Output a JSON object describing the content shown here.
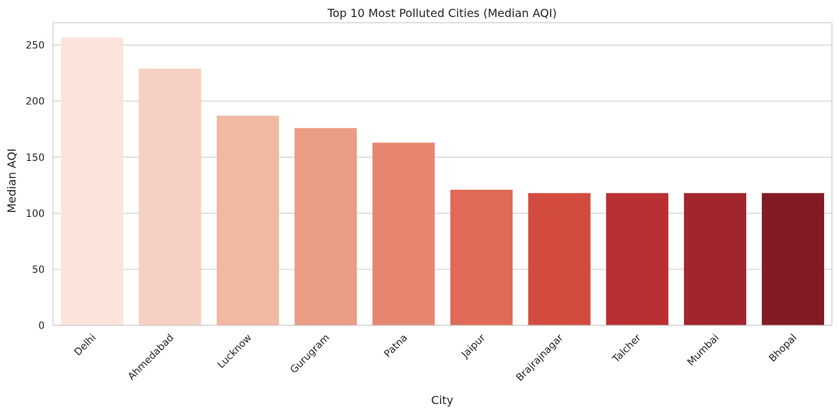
{
  "chart_data": {
    "type": "bar",
    "title": "Top 10 Most Polluted Cities (Median AQI)",
    "xlabel": "City",
    "ylabel": "Median AQI",
    "categories": [
      "Delhi",
      "Ahmedabad",
      "Lucknow",
      "Gurugram",
      "Patna",
      "Jaipur",
      "Brajrajnagar",
      "Talcher",
      "Mumbai",
      "Bhopal"
    ],
    "values": [
      257,
      229,
      187,
      176,
      163,
      121,
      118,
      118,
      118,
      118
    ],
    "ylim": [
      0,
      270
    ],
    "yticks": [
      0,
      50,
      100,
      150,
      200,
      250
    ],
    "grid": "horizontal",
    "colors": [
      "#fbe4dc",
      "#f6d0c2",
      "#f1b8a2",
      "#eb9c84",
      "#e68670",
      "#df6a55",
      "#d34b3f",
      "#b92f32",
      "#a1252d",
      "#821c24"
    ]
  }
}
